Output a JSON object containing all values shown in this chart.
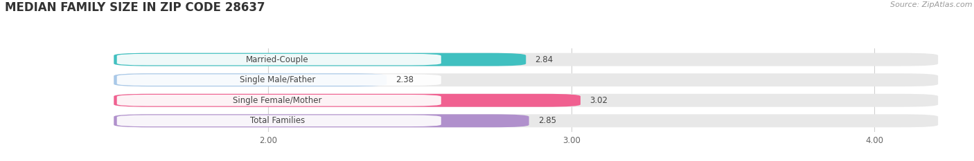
{
  "title": "MEDIAN FAMILY SIZE IN ZIP CODE 28637",
  "source": "Source: ZipAtlas.com",
  "categories": [
    "Married-Couple",
    "Single Male/Father",
    "Single Female/Mother",
    "Total Families"
  ],
  "values": [
    2.84,
    2.38,
    3.02,
    2.85
  ],
  "bar_colors": [
    "#40c0c0",
    "#a8c8e8",
    "#f06090",
    "#b090cc"
  ],
  "bar_bg_color": "#e8e8e8",
  "xlim": [
    1.5,
    4.2
  ],
  "xmin": 1.5,
  "xmax": 4.2,
  "xticks": [
    2.0,
    3.0,
    4.0
  ],
  "xtick_labels": [
    "2.00",
    "3.00",
    "4.00"
  ],
  "bar_height": 0.62,
  "label_fontsize": 8.5,
  "value_fontsize": 8.5,
  "title_fontsize": 12,
  "source_fontsize": 8,
  "background_color": "#ffffff"
}
